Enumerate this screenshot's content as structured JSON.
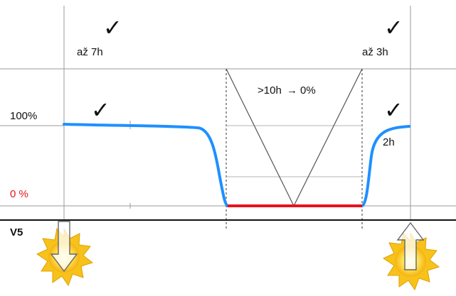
{
  "labels": {
    "until_7h": "až 7h",
    "until_3h": "až 3h",
    "rule_10h_part1": ">10h",
    "rule_10h_part2": "0%",
    "level_100": "100%",
    "level_0": "0 %",
    "recovery_2h": "2h",
    "axis_name": "V5"
  },
  "marks": {
    "checkmark": "✓",
    "arrow": "→"
  },
  "colors": {
    "curve": "#1e90ff",
    "zero_line": "#e8131c",
    "zero_label": "#e8131c",
    "grid": "#9a9a9a",
    "text": "#111111",
    "sun_outer": "#f7c21a",
    "sun_inner": "#fff6a8"
  },
  "icons": [
    "checkmark-icon",
    "sun-icon",
    "down-arrow-icon",
    "up-arrow-icon"
  ]
}
